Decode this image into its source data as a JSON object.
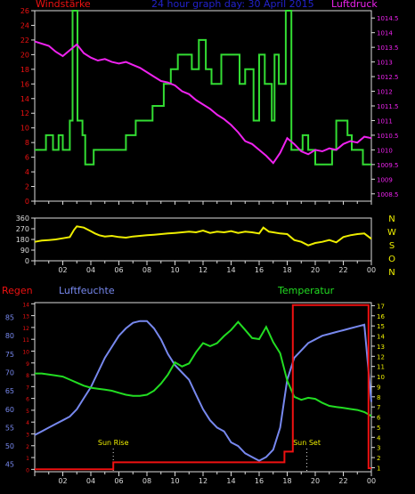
{
  "chart_data": [
    {
      "type": "line",
      "title": "24 hour graph day: 30 April 2015",
      "left_axis_label": "Windstärke",
      "right_axis_label": "Luftdruck",
      "x_ticks": [
        "02",
        "04",
        "06",
        "08",
        "10",
        "12",
        "14",
        "16",
        "18",
        "20",
        "22",
        "00"
      ],
      "y_left_ticks": [
        "0",
        "2",
        "4",
        "6",
        "8",
        "10",
        "12",
        "14",
        "16",
        "18",
        "20",
        "22",
        "24",
        "26"
      ],
      "y_left_range": [
        0,
        26
      ],
      "y_right_ticks": [
        "1008.5",
        "1009",
        "1009.5",
        "1010",
        "1010.5",
        "1011",
        "1011.5",
        "1012",
        "1012.5",
        "1013",
        "1013.5",
        "1014",
        "1014.5"
      ],
      "y_right_range": [
        1008.25,
        1014.75
      ],
      "series": [
        {
          "axis": "left",
          "color": "#33dd33",
          "step": true,
          "x": [
            0,
            0.8,
            0.8,
            1.3,
            1.3,
            1.7,
            1.7,
            2,
            2,
            2.5,
            2.5,
            2.7,
            2.7,
            3.05,
            3.05,
            3.4,
            3.4,
            3.6,
            3.6,
            4.2,
            4.2,
            5,
            5,
            6.5,
            6.5,
            7.2,
            7.2,
            8.4,
            8.4,
            9.2,
            9.2,
            9.7,
            9.7,
            10.2,
            10.2,
            11.2,
            11.2,
            11.7,
            11.7,
            12.2,
            12.2,
            12.6,
            12.6,
            13.3,
            13.3,
            14.6,
            14.6,
            15,
            15,
            15.6,
            15.6,
            16,
            16,
            16.4,
            16.4,
            16.9,
            16.9,
            17.1,
            17.1,
            17.4,
            17.4,
            17.9,
            17.9,
            18.3,
            18.3,
            19.1,
            19.1,
            19.5,
            19.5,
            20,
            20,
            21.2,
            21.2,
            21.5,
            21.5,
            22.3,
            22.3,
            22.6,
            22.6,
            23.4,
            23.4,
            24
          ],
          "y": [
            7,
            7,
            9,
            9,
            7,
            7,
            9,
            9,
            7,
            7,
            11,
            11,
            26,
            26,
            11,
            11,
            9,
            9,
            5,
            5,
            7,
            7,
            7,
            7,
            9,
            9,
            11,
            11,
            13,
            13,
            16,
            16,
            18,
            18,
            20,
            20,
            18,
            18,
            22,
            22,
            18,
            18,
            16,
            16,
            20,
            20,
            16,
            16,
            18,
            18,
            11,
            11,
            20,
            20,
            16,
            16,
            11,
            11,
            20,
            20,
            16,
            16,
            26,
            26,
            7,
            7,
            9,
            9,
            7,
            7,
            5,
            5,
            7,
            7,
            11,
            11,
            9,
            9,
            7,
            7,
            5,
            5
          ]
        },
        {
          "axis": "right",
          "color": "#ee22ee",
          "x": [
            0,
            1,
            1.5,
            2,
            2.5,
            3,
            3.5,
            4,
            4.5,
            5,
            5.5,
            6,
            6.5,
            7,
            7.5,
            8,
            8.5,
            9,
            9.5,
            10,
            10.5,
            11,
            11.5,
            12,
            12.5,
            13,
            13.5,
            14,
            14.5,
            15,
            15.5,
            16,
            16.5,
            17,
            17.5,
            18,
            18.5,
            19,
            19.5,
            20,
            20.5,
            21,
            21.5,
            22,
            22.5,
            23,
            23.5,
            24
          ],
          "y": [
            1013.7,
            1013.55,
            1013.35,
            1013.2,
            1013.4,
            1013.6,
            1013.3,
            1013.15,
            1013.05,
            1013.1,
            1013.0,
            1012.95,
            1013.0,
            1012.9,
            1012.8,
            1012.65,
            1012.5,
            1012.35,
            1012.3,
            1012.2,
            1012.0,
            1011.9,
            1011.7,
            1011.55,
            1011.4,
            1011.2,
            1011.05,
            1010.85,
            1010.6,
            1010.3,
            1010.2,
            1010.0,
            1009.8,
            1009.55,
            1009.9,
            1010.4,
            1010.2,
            1009.95,
            1009.85,
            1010.0,
            1009.95,
            1010.05,
            1010.0,
            1010.2,
            1010.3,
            1010.25,
            1010.45,
            1010.4
          ]
        }
      ]
    },
    {
      "type": "line",
      "y_left_ticks": [
        "0",
        "90",
        "180",
        "270",
        "360"
      ],
      "y_range": [
        0,
        360
      ],
      "y_right_ticks": [
        "N",
        "W",
        "S",
        "O",
        "N"
      ],
      "series": [
        {
          "color": "#eeee00",
          "x": [
            0,
            0.5,
            1,
            1.5,
            2,
            2.5,
            2.8,
            3,
            3.5,
            4,
            4.3,
            4.6,
            5,
            5.5,
            6,
            6.5,
            7,
            7.5,
            8,
            8.5,
            9,
            9.5,
            10,
            10.5,
            11,
            11.5,
            12,
            12.5,
            13,
            13.5,
            14,
            14.5,
            15,
            15.5,
            16,
            16.3,
            16.7,
            17,
            17.5,
            18,
            18.5,
            19,
            19.5,
            20,
            20.5,
            21,
            21.5,
            22,
            22.5,
            23,
            23.5,
            24
          ],
          "y": [
            160,
            170,
            175,
            180,
            190,
            200,
            260,
            290,
            280,
            250,
            230,
            215,
            205,
            210,
            200,
            195,
            205,
            210,
            215,
            220,
            225,
            230,
            235,
            240,
            245,
            240,
            255,
            235,
            245,
            240,
            250,
            235,
            245,
            240,
            230,
            280,
            245,
            240,
            230,
            225,
            175,
            160,
            130,
            150,
            160,
            175,
            155,
            200,
            215,
            225,
            230,
            185
          ]
        }
      ]
    },
    {
      "type": "line",
      "left_axis_label": "Regen",
      "left_axis_label_2": "Luftfeuchte",
      "right_axis_label": "Temperatur",
      "annotations": [
        "Sun Rise",
        "Sun Set"
      ],
      "annotation_x": [
        5.6,
        19.4
      ],
      "y_left_ticks": [
        "45",
        "50",
        "55",
        "60",
        "65",
        "70",
        "75",
        "80",
        "85"
      ],
      "y_left_range": [
        43,
        89
      ],
      "y_right_ticks": [
        "1",
        "2",
        "3",
        "4",
        "5",
        "6",
        "7",
        "8",
        "9",
        "10",
        "11",
        "12",
        "13",
        "14",
        "15",
        "16",
        "17"
      ],
      "y_right_range": [
        0.6,
        17.3
      ],
      "rain_ticks": [
        "0",
        "1",
        "2",
        "3",
        "4",
        "5",
        "6",
        "7",
        "8",
        "9",
        "10",
        "11",
        "12",
        "13",
        "14"
      ],
      "rain_range": [
        -0.2,
        14.1
      ],
      "series": [
        {
          "name": "Regen",
          "axis": "rain",
          "color": "#ee1111",
          "step": true,
          "x": [
            0,
            5.6,
            5.6,
            17.8,
            17.8,
            18.4,
            18.4,
            23.8,
            23.8,
            24
          ],
          "y": [
            0,
            0,
            0.6,
            0.6,
            1.5,
            1.5,
            13.9,
            13.9,
            0.1,
            0.1
          ]
        },
        {
          "name": "Luftfeuchte",
          "axis": "left",
          "color": "#7788ee",
          "x": [
            0,
            0.5,
            1,
            1.5,
            2,
            2.5,
            3,
            3.5,
            4,
            4.5,
            5,
            5.5,
            6,
            6.5,
            7,
            7.5,
            8,
            8.5,
            9,
            9.5,
            10,
            10.5,
            11,
            11.5,
            12,
            12.5,
            13,
            13.5,
            14,
            14.5,
            15,
            15.5,
            16,
            16.5,
            17,
            17.5,
            18,
            18.5,
            19,
            19.5,
            20,
            20.5,
            21,
            21.5,
            22,
            22.5,
            23,
            23.5,
            24
          ],
          "y": [
            53,
            54,
            55,
            56,
            57,
            58,
            60,
            63,
            66,
            70,
            74,
            77,
            80,
            82,
            83.5,
            84,
            84,
            82,
            79,
            75,
            72,
            70,
            68,
            64,
            60,
            57,
            55,
            54,
            51,
            50,
            48,
            47,
            46,
            47,
            49,
            55,
            68,
            74,
            76,
            78,
            79,
            80,
            80.5,
            81,
            81.5,
            82,
            82.5,
            83,
            62
          ]
        },
        {
          "name": "Temperatur",
          "axis": "right",
          "color": "#22dd22",
          "x": [
            0,
            0.5,
            1,
            1.5,
            2,
            2.5,
            3,
            3.5,
            4,
            4.5,
            5,
            5.5,
            6,
            6.5,
            7,
            7.5,
            8,
            8.5,
            9,
            9.5,
            10,
            10.5,
            11,
            11.5,
            12,
            12.5,
            13,
            13.5,
            14,
            14.5,
            15,
            15.5,
            16,
            16.5,
            17,
            17.5,
            18,
            18.5,
            19,
            19.5,
            20,
            20.5,
            21,
            21.5,
            22,
            22.5,
            23,
            23.5,
            24
          ],
          "y": [
            10.3,
            10.3,
            10.2,
            10.1,
            10.0,
            9.7,
            9.4,
            9.1,
            8.9,
            8.8,
            8.7,
            8.6,
            8.4,
            8.2,
            8.1,
            8.1,
            8.2,
            8.6,
            9.3,
            10.2,
            11.4,
            11.0,
            11.3,
            12.4,
            13.3,
            13.0,
            13.3,
            14.0,
            14.6,
            15.4,
            14.6,
            13.8,
            13.7,
            14.9,
            13.4,
            12.3,
            9.6,
            8.0,
            7.7,
            7.9,
            7.8,
            7.4,
            7.1,
            7.0,
            6.9,
            6.8,
            6.7,
            6.5,
            6.1
          ]
        }
      ]
    }
  ],
  "colors": {
    "axis": "#dddddd",
    "wind_label": "#ee1111",
    "pressure_label": "#ee22ee",
    "title": "#2222cc",
    "direction_label": "#eeee00",
    "rain_label": "#ee1111",
    "humidity_label": "#7788ee",
    "temp_label": "#22dd22",
    "rain_ticks": "#ee1111",
    "humidity_ticks": "#7788ee",
    "temp_ticks": "#eeee00",
    "sun_labels": "#eeee00"
  }
}
